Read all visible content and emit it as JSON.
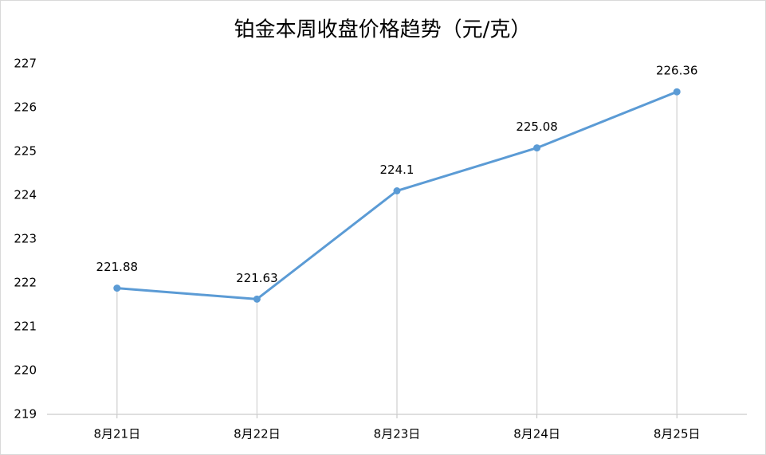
{
  "chart_data": {
    "type": "line",
    "title": "铂金本周收盘价格趋势（元/克）",
    "categories": [
      "8月21日",
      "8月22日",
      "8月23日",
      "8月24日",
      "8月25日"
    ],
    "series": [
      {
        "name": "收盘价格",
        "color": "#5b9bd5",
        "values": [
          221.88,
          221.63,
          224.1,
          225.08,
          226.36
        ]
      }
    ],
    "ylim": [
      219,
      227
    ],
    "yticks": [
      219,
      220,
      221,
      222,
      223,
      224,
      225,
      226,
      227
    ],
    "grid": false,
    "drop_lines": true,
    "legend": false
  }
}
